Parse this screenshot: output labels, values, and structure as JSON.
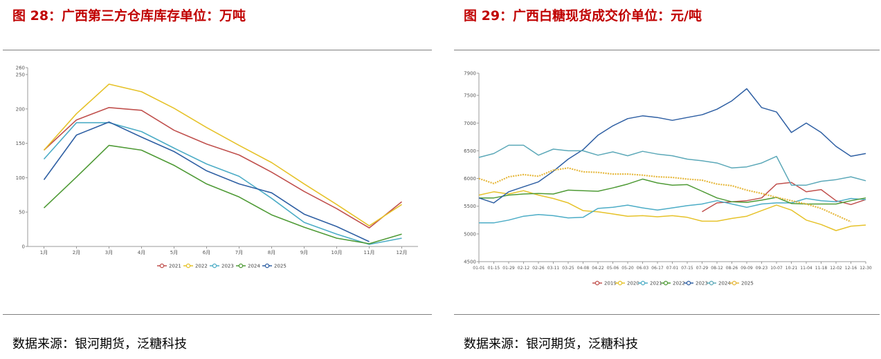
{
  "figures": [
    {
      "title": "图 28：广西第三方仓库库存单位：万吨",
      "source": "数据来源：银河期货，泛糖科技"
    },
    {
      "title": "图 29：广西白糖现货成交价单位：元/吨",
      "source": "数据来源：银河期货，泛糖科技"
    }
  ],
  "chart_data": [
    {
      "type": "line",
      "title": "广西第三方仓库库存单位：万吨",
      "xlabel": "",
      "ylabel": "",
      "categories": [
        "1月",
        "2月",
        "3月",
        "4月",
        "5月",
        "6月",
        "7月",
        "8月",
        "9月",
        "10月",
        "11月",
        "12月"
      ],
      "yticks": [
        0,
        50,
        100,
        150,
        200,
        250,
        260
      ],
      "ylim": [
        0,
        260
      ],
      "legend_position": "bottom",
      "series": [
        {
          "name": "2021",
          "color": "#c0504d",
          "values": [
            140,
            184,
            202,
            198,
            169,
            149,
            133,
            108,
            80,
            55,
            27,
            65
          ]
        },
        {
          "name": "2022",
          "color": "#e6c229",
          "values": [
            140,
            193,
            236,
            225,
            201,
            173,
            147,
            122,
            91,
            61,
            30,
            61
          ]
        },
        {
          "name": "2023",
          "color": "#4bacc6",
          "values": [
            127,
            180,
            180,
            167,
            143,
            120,
            102,
            70,
            35,
            18,
            3,
            12
          ]
        },
        {
          "name": "2024",
          "color": "#4e9a35",
          "values": [
            56,
            101,
            147,
            140,
            118,
            91,
            72,
            46,
            28,
            12,
            4,
            18
          ]
        },
        {
          "name": "2025",
          "color": "#2e5fa3",
          "values": [
            97,
            162,
            181,
            159,
            138,
            110,
            91,
            78,
            47,
            29,
            7,
            null
          ]
        }
      ]
    },
    {
      "type": "line",
      "title": "广西白糖现货成交价单位：元/吨",
      "xlabel": "",
      "ylabel": "",
      "categories": [
        "01-01",
        "01-15",
        "01-29",
        "02-12",
        "02-26",
        "03-11",
        "03-25",
        "04-08",
        "04-22",
        "05-06",
        "05-20",
        "06-03",
        "06-17",
        "07-01",
        "07-15",
        "07-29",
        "08-12",
        "08-26",
        "09-09",
        "09-23",
        "10-07",
        "10-21",
        "11-04",
        "11-18",
        "12-02",
        "12-16",
        "12-30"
      ],
      "yticks": [
        4500,
        5000,
        5500,
        6000,
        6500,
        7000,
        7500,
        7900
      ],
      "ylim": [
        4500,
        7900
      ],
      "legend_position": "bottom",
      "series": [
        {
          "name": "2019",
          "color": "#c0504d",
          "marker": "circle",
          "values": [
            null,
            null,
            null,
            null,
            null,
            null,
            null,
            null,
            null,
            null,
            null,
            null,
            null,
            null,
            null,
            5400,
            5560,
            5580,
            5600,
            5650,
            5900,
            5930,
            5760,
            5800,
            5600,
            5530,
            5620
          ]
        },
        {
          "name": "2020",
          "color": "#e6c229",
          "marker": "circle",
          "values": [
            5700,
            5760,
            5720,
            5780,
            5700,
            5640,
            5560,
            5420,
            5400,
            5360,
            5320,
            5330,
            5310,
            5330,
            5300,
            5230,
            5230,
            5280,
            5320,
            5420,
            5520,
            5430,
            5250,
            5170,
            5060,
            5140,
            5160
          ]
        },
        {
          "name": "2021",
          "color": "#4bacc6",
          "marker": "circle",
          "values": [
            5200,
            5200,
            5250,
            5320,
            5350,
            5330,
            5290,
            5300,
            5460,
            5480,
            5520,
            5470,
            5430,
            5470,
            5510,
            5540,
            5600,
            5540,
            5480,
            5540,
            5560,
            5560,
            5640,
            5600,
            5580,
            5640,
            5620
          ]
        },
        {
          "name": "2022",
          "color": "#4e9a35",
          "marker": "circle",
          "values": [
            5650,
            5650,
            5700,
            5720,
            5730,
            5720,
            5790,
            5780,
            5770,
            5830,
            5900,
            5990,
            5920,
            5880,
            5890,
            5770,
            5650,
            5580,
            5570,
            5610,
            5660,
            5550,
            5540,
            5540,
            5540,
            5600,
            5650
          ]
        },
        {
          "name": "2023",
          "color": "#2e5fa3",
          "marker": "circle",
          "values": [
            5650,
            5560,
            5760,
            5850,
            5940,
            6130,
            6350,
            6520,
            6780,
            6950,
            7080,
            7130,
            7100,
            7050,
            7100,
            7150,
            7250,
            7400,
            7620,
            7280,
            7200,
            6830,
            7000,
            6830,
            6580,
            6400,
            6450
          ]
        },
        {
          "name": "2024",
          "color": "#4bacc6",
          "lineColor": "#5ba8b8",
          "marker": "circle",
          "values": [
            6380,
            6450,
            6600,
            6600,
            6420,
            6530,
            6500,
            6500,
            6420,
            6480,
            6410,
            6490,
            6440,
            6410,
            6350,
            6320,
            6280,
            6190,
            6210,
            6280,
            6400,
            5880,
            5880,
            5950,
            5980,
            6030,
            5960
          ]
        },
        {
          "name": "2025",
          "color": "#e6b73a",
          "marker": "circle",
          "dotted": true,
          "values": [
            6000,
            5910,
            6030,
            6070,
            6040,
            6150,
            6190,
            6120,
            6110,
            6080,
            6080,
            6060,
            6030,
            6020,
            5990,
            5970,
            5900,
            5870,
            5790,
            5730,
            5660,
            5600,
            5540,
            5460,
            5340,
            5220,
            null
          ]
        }
      ]
    }
  ]
}
